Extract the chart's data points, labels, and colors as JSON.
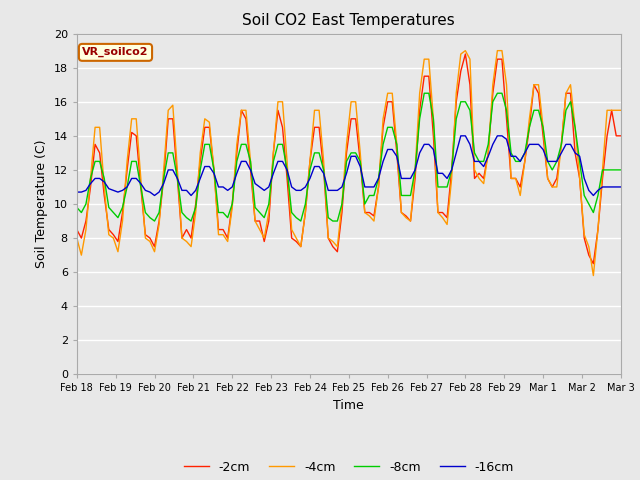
{
  "title": "Soil CO2 East Temperatures",
  "xlabel": "Time",
  "ylabel": "Soil Temperature (C)",
  "ylim": [
    0,
    20
  ],
  "yticks": [
    0,
    2,
    4,
    6,
    8,
    10,
    12,
    14,
    16,
    18,
    20
  ],
  "legend_label": "VR_soilco2",
  "bg_color": "#e8e8e8",
  "fig_color": "#e8e8e8",
  "line_colors": {
    "-2cm": "#ff2200",
    "-4cm": "#ff9900",
    "-8cm": "#00cc00",
    "-16cm": "#0000cc"
  },
  "xtick_labels": [
    "Feb 18",
    "Feb 19",
    "Feb 20",
    "Feb 21",
    "Feb 22",
    "Feb 23",
    "Feb 24",
    "Feb 25",
    "Feb 26",
    "Feb 27",
    "Feb 28",
    "Feb 29",
    "Mar 1",
    "Mar 2",
    "Mar 3"
  ],
  "num_points_per_day": 8,
  "days": 15,
  "data_2cm": [
    8.5,
    8.0,
    9.0,
    11.0,
    13.5,
    13.0,
    10.5,
    8.5,
    8.2,
    7.8,
    9.5,
    12.0,
    14.2,
    14.0,
    11.0,
    8.2,
    8.0,
    7.5,
    9.0,
    11.5,
    15.0,
    15.0,
    11.5,
    8.0,
    8.5,
    8.0,
    10.0,
    12.5,
    14.5,
    14.5,
    12.0,
    8.5,
    8.5,
    8.0,
    10.0,
    13.0,
    15.5,
    15.0,
    12.0,
    9.0,
    9.0,
    7.8,
    9.0,
    13.0,
    15.5,
    14.5,
    11.5,
    8.0,
    7.8,
    7.5,
    9.5,
    12.5,
    14.5,
    14.5,
    12.0,
    8.0,
    7.5,
    7.2,
    9.5,
    13.0,
    15.0,
    15.0,
    12.5,
    9.5,
    9.5,
    9.3,
    11.0,
    14.5,
    16.0,
    16.0,
    13.0,
    9.5,
    9.3,
    9.0,
    11.5,
    15.5,
    17.5,
    17.5,
    14.0,
    9.5,
    9.5,
    9.2,
    12.0,
    16.0,
    17.8,
    18.8,
    17.0,
    11.5,
    11.8,
    11.5,
    13.0,
    16.5,
    18.5,
    18.5,
    15.0,
    11.5,
    11.5,
    11.0,
    12.5,
    14.5,
    17.0,
    16.5,
    14.0,
    11.5,
    11.0,
    11.5,
    13.5,
    16.5,
    16.5,
    13.0,
    11.5,
    8.0,
    7.0,
    6.5,
    8.5,
    11.5,
    14.0,
    15.5,
    14.0,
    14.0
  ],
  "data_4cm": [
    8.0,
    7.0,
    8.5,
    11.5,
    14.5,
    14.5,
    11.0,
    8.2,
    8.0,
    7.2,
    9.0,
    12.5,
    15.0,
    15.0,
    11.5,
    8.0,
    7.8,
    7.2,
    8.8,
    12.0,
    15.5,
    15.8,
    12.0,
    8.0,
    7.8,
    7.5,
    9.5,
    13.0,
    15.0,
    14.8,
    12.0,
    8.2,
    8.2,
    7.8,
    9.8,
    13.5,
    15.5,
    15.5,
    12.5,
    9.0,
    8.5,
    8.0,
    9.5,
    13.0,
    16.0,
    16.0,
    12.5,
    8.5,
    8.0,
    7.5,
    9.5,
    12.5,
    15.5,
    15.5,
    12.5,
    8.0,
    7.8,
    7.5,
    10.0,
    13.5,
    16.0,
    16.0,
    13.0,
    9.5,
    9.3,
    9.0,
    11.0,
    15.0,
    16.5,
    16.5,
    13.5,
    9.5,
    9.2,
    9.0,
    12.0,
    16.5,
    18.5,
    18.5,
    15.0,
    9.5,
    9.2,
    8.8,
    11.5,
    16.5,
    18.8,
    19.0,
    18.5,
    12.0,
    11.5,
    11.2,
    13.0,
    17.0,
    19.0,
    19.0,
    17.0,
    11.5,
    11.5,
    10.5,
    12.5,
    15.0,
    17.0,
    17.0,
    14.5,
    11.5,
    11.0,
    11.0,
    13.5,
    16.5,
    17.0,
    14.5,
    11.5,
    8.2,
    7.5,
    5.8,
    8.5,
    12.0,
    15.5,
    15.5,
    15.5,
    15.5
  ],
  "data_8cm": [
    9.8,
    9.5,
    10.0,
    11.5,
    12.5,
    12.5,
    11.5,
    9.8,
    9.5,
    9.2,
    9.8,
    11.0,
    12.5,
    12.5,
    11.0,
    9.5,
    9.2,
    9.0,
    9.5,
    11.5,
    13.0,
    13.0,
    11.5,
    9.5,
    9.2,
    9.0,
    9.8,
    12.0,
    13.5,
    13.5,
    12.0,
    9.5,
    9.5,
    9.2,
    10.0,
    12.5,
    13.5,
    13.5,
    12.5,
    9.8,
    9.5,
    9.2,
    10.0,
    12.5,
    13.5,
    13.5,
    12.0,
    9.5,
    9.2,
    9.0,
    10.0,
    12.0,
    13.0,
    13.0,
    12.0,
    9.2,
    9.0,
    9.0,
    10.0,
    12.5,
    13.0,
    13.0,
    12.5,
    10.0,
    10.5,
    10.5,
    11.5,
    13.5,
    14.5,
    14.5,
    13.5,
    10.5,
    10.5,
    10.5,
    12.0,
    15.0,
    16.5,
    16.5,
    15.0,
    11.0,
    11.0,
    11.0,
    12.0,
    15.0,
    16.0,
    16.0,
    15.5,
    13.0,
    12.5,
    12.5,
    13.5,
    16.0,
    16.5,
    16.5,
    15.5,
    13.0,
    12.5,
    12.5,
    13.0,
    14.5,
    15.5,
    15.5,
    14.5,
    12.5,
    12.0,
    12.5,
    13.5,
    15.5,
    16.0,
    14.5,
    12.5,
    10.5,
    10.0,
    9.5,
    10.5,
    12.0,
    12.0,
    12.0,
    12.0,
    12.0
  ],
  "data_16cm": [
    10.7,
    10.7,
    10.8,
    11.2,
    11.5,
    11.5,
    11.3,
    10.9,
    10.8,
    10.7,
    10.8,
    11.0,
    11.5,
    11.5,
    11.2,
    10.8,
    10.7,
    10.5,
    10.7,
    11.2,
    12.0,
    12.0,
    11.5,
    10.8,
    10.8,
    10.5,
    10.8,
    11.5,
    12.2,
    12.2,
    11.8,
    11.0,
    11.0,
    10.8,
    11.0,
    11.8,
    12.5,
    12.5,
    12.0,
    11.2,
    11.0,
    10.8,
    11.0,
    11.8,
    12.5,
    12.5,
    12.0,
    11.0,
    10.8,
    10.8,
    11.0,
    11.5,
    12.2,
    12.2,
    11.8,
    10.8,
    10.8,
    10.8,
    11.0,
    11.8,
    12.8,
    12.8,
    12.2,
    11.0,
    11.0,
    11.0,
    11.5,
    12.5,
    13.2,
    13.2,
    12.8,
    11.5,
    11.5,
    11.5,
    12.0,
    13.0,
    13.5,
    13.5,
    13.2,
    11.8,
    11.8,
    11.5,
    12.0,
    13.0,
    14.0,
    14.0,
    13.5,
    12.5,
    12.5,
    12.2,
    12.8,
    13.5,
    14.0,
    14.0,
    13.8,
    12.8,
    12.8,
    12.5,
    13.0,
    13.5,
    13.5,
    13.5,
    13.2,
    12.5,
    12.5,
    12.5,
    13.0,
    13.5,
    13.5,
    13.0,
    12.8,
    11.5,
    10.8,
    10.5,
    10.8,
    11.0,
    11.0,
    11.0,
    11.0,
    11.0
  ]
}
